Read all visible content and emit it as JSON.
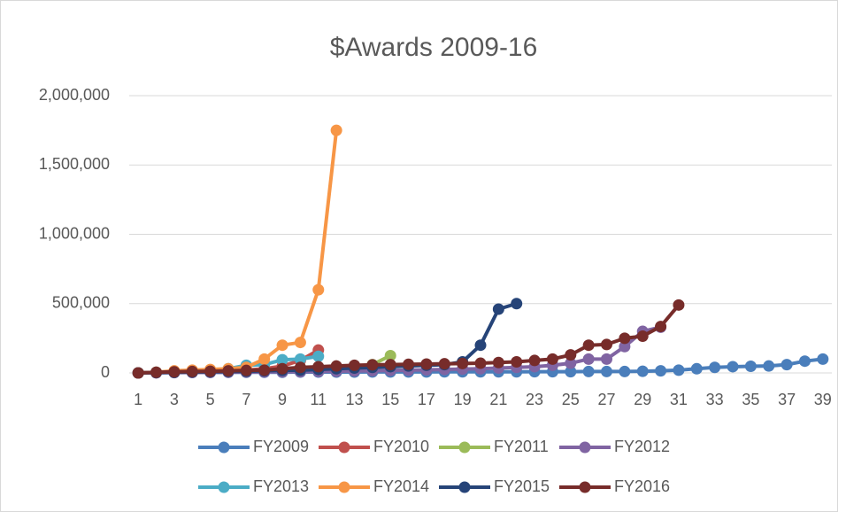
{
  "chart_data": {
    "type": "line",
    "title": "$Awards 2009-16",
    "categories": [
      "1",
      null,
      "3",
      null,
      "5",
      null,
      "7",
      null,
      "9",
      null,
      "11",
      null,
      "13",
      null,
      "15",
      null,
      "17",
      null,
      "19",
      null,
      "21",
      null,
      "23",
      null,
      "25",
      null,
      "27",
      null,
      "29",
      null,
      "31",
      null,
      "33",
      null,
      "35",
      null,
      "37",
      null,
      "39"
    ],
    "ylim": [
      0,
      2000000
    ],
    "yticks": [
      0,
      {
        "value": 500000,
        "label": "500,000"
      },
      {
        "value": 1000000,
        "label": "1,000,000"
      },
      {
        "value": 1500000,
        "label": "1,500,000"
      },
      {
        "value": 2000000,
        "label": "2,000,000"
      }
    ],
    "grid": true,
    "legend": "bottom",
    "series": [
      {
        "name": "FY2009",
        "color": "#4a7ebb",
        "values": [
          0,
          2000,
          3000,
          4000,
          4000,
          5000,
          5000,
          5000,
          5000,
          6000,
          6000,
          6000,
          6000,
          7000,
          7000,
          7000,
          7000,
          8000,
          8000,
          8000,
          8000,
          8000,
          9000,
          9000,
          9000,
          10000,
          10000,
          10000,
          12000,
          15000,
          20000,
          30000,
          40000,
          45000,
          48000,
          50000,
          60000,
          85000,
          100000
        ]
      },
      {
        "name": "FY2010",
        "color": "#c0504d",
        "values": [
          0,
          2000,
          5000,
          8000,
          10000,
          15000,
          20000,
          30000,
          50000,
          90000,
          165000,
          null,
          null,
          null,
          null,
          null,
          null,
          null,
          null,
          null,
          null,
          null,
          null,
          null,
          null,
          null,
          null,
          null,
          null,
          null,
          null,
          null,
          null,
          null,
          null,
          null,
          null,
          null,
          null
        ]
      },
      {
        "name": "FY2011",
        "color": "#9bbb59",
        "values": [
          0,
          2000,
          4000,
          6000,
          8000,
          10000,
          12000,
          15000,
          20000,
          25000,
          30000,
          35000,
          40000,
          60000,
          125000,
          null,
          null,
          null,
          null,
          null,
          null,
          null,
          null,
          null,
          null,
          null,
          null,
          null,
          null,
          null,
          null,
          null,
          null,
          null,
          null,
          null,
          null,
          null,
          null
        ]
      },
      {
        "name": "FY2012",
        "color": "#8064a2",
        "values": [
          0,
          1000,
          2000,
          3000,
          4000,
          5000,
          6000,
          7000,
          8000,
          9000,
          10000,
          12000,
          14000,
          16000,
          18000,
          20000,
          22000,
          25000,
          28000,
          30000,
          35000,
          40000,
          45000,
          55000,
          70000,
          100000,
          100000,
          190000,
          300000,
          330000,
          null,
          null,
          null,
          null,
          null,
          null,
          null,
          null,
          null
        ]
      },
      {
        "name": "FY2013",
        "color": "#4bacc6",
        "values": [
          0,
          5000,
          10000,
          15000,
          20000,
          30000,
          55000,
          60000,
          95000,
          100000,
          120000,
          null,
          null,
          null,
          null,
          null,
          null,
          null,
          null,
          null,
          null,
          null,
          null,
          null,
          null,
          null,
          null,
          null,
          null,
          null,
          null,
          null,
          null,
          null,
          null,
          null,
          null,
          null,
          null
        ]
      },
      {
        "name": "FY2014",
        "color": "#f79646",
        "values": [
          0,
          5000,
          15000,
          20000,
          25000,
          30000,
          40000,
          100000,
          200000,
          220000,
          600000,
          1750000,
          null,
          null,
          null,
          null,
          null,
          null,
          null,
          null,
          null,
          null,
          null,
          null,
          null,
          null,
          null,
          null,
          null,
          null,
          null,
          null,
          null,
          null,
          null,
          null,
          null,
          null,
          null
        ]
      },
      {
        "name": "FY2015",
        "color": "#264478",
        "values": [
          0,
          2000,
          4000,
          6000,
          8000,
          10000,
          12000,
          15000,
          18000,
          20000,
          25000,
          30000,
          35000,
          40000,
          45000,
          50000,
          55000,
          60000,
          80000,
          200000,
          460000,
          500000,
          null,
          null,
          null,
          null,
          null,
          null,
          null,
          null,
          null,
          null,
          null,
          null,
          null,
          null,
          null,
          null,
          null
        ]
      },
      {
        "name": "FY2016",
        "color": "#772c2a",
        "values": [
          0,
          5000,
          8000,
          10000,
          12000,
          15000,
          18000,
          20000,
          30000,
          40000,
          45000,
          50000,
          55000,
          58000,
          60000,
          62000,
          64000,
          66000,
          68000,
          70000,
          75000,
          80000,
          90000,
          100000,
          130000,
          200000,
          205000,
          250000,
          265000,
          335000,
          490000,
          null,
          null,
          null,
          null,
          null,
          null,
          null,
          null
        ]
      }
    ]
  }
}
